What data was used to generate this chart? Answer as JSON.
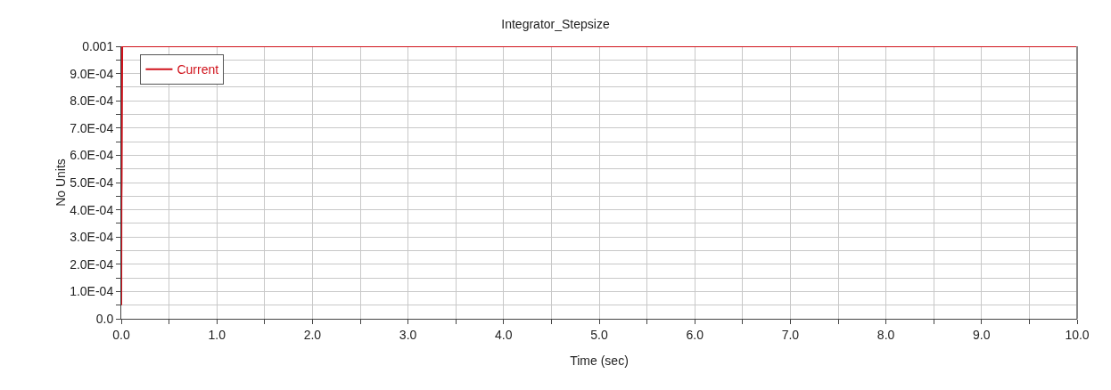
{
  "chart_data": {
    "type": "line",
    "title": "Integrator_Stepsize",
    "xlabel": "Time (sec)",
    "ylabel": "No Units",
    "series": [
      {
        "name": "Current",
        "color": "#d0121b",
        "x": [
          0,
          0.002,
          0.004,
          0.01,
          10
        ],
        "values": [
          5e-05,
          0.00043,
          0.0005,
          0.001,
          0.001
        ]
      }
    ],
    "xlim": [
      0,
      10
    ],
    "ylim": [
      0,
      0.001
    ],
    "xticks": [
      {
        "value": 0,
        "label": "0.0"
      },
      {
        "value": 0.5,
        "label": null
      },
      {
        "value": 1,
        "label": "1.0"
      },
      {
        "value": 1.5,
        "label": null
      },
      {
        "value": 2,
        "label": "2.0"
      },
      {
        "value": 2.5,
        "label": null
      },
      {
        "value": 3,
        "label": "3.0"
      },
      {
        "value": 3.5,
        "label": null
      },
      {
        "value": 4,
        "label": "4.0"
      },
      {
        "value": 4.5,
        "label": null
      },
      {
        "value": 5,
        "label": "5.0"
      },
      {
        "value": 5.5,
        "label": null
      },
      {
        "value": 6,
        "label": "6.0"
      },
      {
        "value": 6.5,
        "label": null
      },
      {
        "value": 7,
        "label": "7.0"
      },
      {
        "value": 7.5,
        "label": null
      },
      {
        "value": 8,
        "label": "8.0"
      },
      {
        "value": 8.5,
        "label": null
      },
      {
        "value": 9,
        "label": "9.0"
      },
      {
        "value": 9.5,
        "label": null
      },
      {
        "value": 10,
        "label": "10.0"
      }
    ],
    "yticks": [
      {
        "value": 0,
        "label": "0.0"
      },
      {
        "value": 5e-05,
        "label": null
      },
      {
        "value": 0.0001,
        "label": "1.0E-04"
      },
      {
        "value": 0.00015,
        "label": null
      },
      {
        "value": 0.0002,
        "label": "2.0E-04"
      },
      {
        "value": 0.00025,
        "label": null
      },
      {
        "value": 0.0003,
        "label": "3.0E-04"
      },
      {
        "value": 0.00035,
        "label": null
      },
      {
        "value": 0.0004,
        "label": "4.0E-04"
      },
      {
        "value": 0.00045,
        "label": null
      },
      {
        "value": 0.0005,
        "label": "5.0E-04"
      },
      {
        "value": 0.00055,
        "label": null
      },
      {
        "value": 0.0006,
        "label": "6.0E-04"
      },
      {
        "value": 0.00065,
        "label": null
      },
      {
        "value": 0.0007,
        "label": "7.0E-04"
      },
      {
        "value": 0.00075,
        "label": null
      },
      {
        "value": 0.0008,
        "label": "8.0E-04"
      },
      {
        "value": 0.00085,
        "label": null
      },
      {
        "value": 0.0009,
        "label": "9.0E-04"
      },
      {
        "value": 0.00095,
        "label": null
      },
      {
        "value": 0.001,
        "label": "0.001"
      }
    ],
    "grid": true,
    "legend": "top left",
    "marker": "none",
    "line_style": "solid"
  }
}
